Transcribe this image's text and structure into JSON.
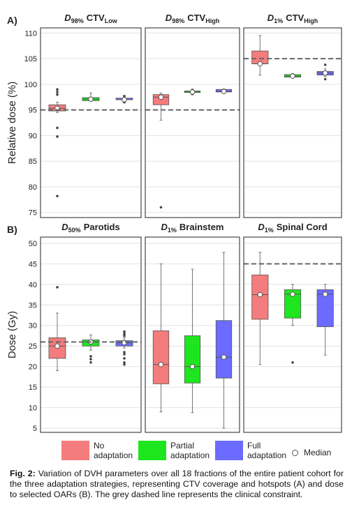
{
  "chart_data": [
    {
      "type": "box",
      "panel_label": "A)",
      "title": {
        "var": "D",
        "var_sub": "98%",
        "name": "CTV",
        "name_sub": "Low"
      },
      "ylabel": "Relative dose (%)",
      "ylim": [
        74,
        111
      ],
      "yticks": [
        75,
        80,
        85,
        90,
        95,
        100,
        105,
        110
      ],
      "grid": true,
      "constraint": 95,
      "series": [
        {
          "name": "No adaptation",
          "color": "#f47c7c",
          "whislo": 94.5,
          "q1": 94.8,
          "med": 95.3,
          "q3": 96.0,
          "whishi": 96.5,
          "fliers": [
            99,
            98.5,
            98,
            91.5,
            89.8,
            78.2
          ]
        },
        {
          "name": "Partial adaptation",
          "color": "#1ee61e",
          "whislo": 96.7,
          "q1": 96.8,
          "med": 97.1,
          "q3": 97.4,
          "whishi": 98.3,
          "fliers": []
        },
        {
          "name": "Full adaptation",
          "color": "#6b6bff",
          "whislo": 96.5,
          "q1": 97.0,
          "med": 97.0,
          "q3": 97.3,
          "whishi": 97.7,
          "fliers": [
            97.7,
            96.5
          ]
        }
      ]
    },
    {
      "type": "box",
      "title": {
        "var": "D",
        "var_sub": "98%",
        "name": "CTV",
        "name_sub": "High"
      },
      "ylim": [
        74,
        111
      ],
      "yticks": [
        75,
        80,
        85,
        90,
        95,
        100,
        105,
        110
      ],
      "grid": true,
      "constraint": 95,
      "series": [
        {
          "name": "No adaptation",
          "color": "#f47c7c",
          "whislo": 93,
          "q1": 96,
          "med": 97.5,
          "q3": 98,
          "whishi": 98.3,
          "fliers": [
            76
          ]
        },
        {
          "name": "Partial adaptation",
          "color": "#1ee61e",
          "whislo": 98.0,
          "q1": 98.4,
          "med": 98.5,
          "q3": 98.7,
          "whishi": 99.0,
          "fliers": [
            98.9,
            98.1
          ]
        },
        {
          "name": "Full adaptation",
          "color": "#6b6bff",
          "whislo": 98.4,
          "q1": 98.5,
          "med": 98.6,
          "q3": 99.0,
          "whishi": 99.1,
          "fliers": []
        }
      ]
    },
    {
      "type": "box",
      "title": {
        "var": "D",
        "var_sub": "1%",
        "name": "CTV",
        "name_sub": "High"
      },
      "ylim": [
        74,
        111
      ],
      "yticks": [
        75,
        80,
        85,
        90,
        95,
        100,
        105,
        110
      ],
      "grid": true,
      "constraint": 105,
      "series": [
        {
          "name": "No adaptation",
          "color": "#f47c7c",
          "whislo": 101.8,
          "q1": 104,
          "med": 104,
          "q3": 106.5,
          "whishi": 109.5,
          "fliers": []
        },
        {
          "name": "Partial adaptation",
          "color": "#1ee61e",
          "whislo": 101.2,
          "q1": 101.4,
          "med": 101.6,
          "q3": 101.9,
          "whishi": 102.1,
          "fliers": []
        },
        {
          "name": "Full adaptation",
          "color": "#6b6bff",
          "whislo": 101.5,
          "q1": 101.8,
          "med": 102.2,
          "q3": 102.5,
          "whishi": 103,
          "fliers": [
            103.8,
            101
          ]
        }
      ]
    },
    {
      "type": "box",
      "panel_label": "B)",
      "title": {
        "var": "D",
        "var_sub": "50%",
        "name": "Parotids"
      },
      "ylabel": "Dose (Gy)",
      "ylim": [
        4,
        51.5
      ],
      "yticks": [
        5,
        10,
        15,
        20,
        25,
        30,
        35,
        40,
        45,
        50
      ],
      "grid": true,
      "constraint": 26,
      "series": [
        {
          "name": "No adaptation",
          "color": "#f47c7c",
          "whislo": 19,
          "q1": 22,
          "med": 25,
          "q3": 27,
          "whishi": 33,
          "fliers": [
            39.3
          ]
        },
        {
          "name": "Partial adaptation",
          "color": "#1ee61e",
          "whislo": 24,
          "q1": 25,
          "med": 26,
          "q3": 26.5,
          "whishi": 27.7,
          "fliers": [
            22.5,
            21.8,
            21
          ]
        },
        {
          "name": "Full adaptation",
          "color": "#6b6bff",
          "whislo": 24.5,
          "q1": 25,
          "med": 25.8,
          "q3": 26.3,
          "whishi": 27,
          "fliers": [
            28.5,
            28,
            27.5,
            23.5,
            23,
            22,
            21,
            20.5
          ]
        }
      ]
    },
    {
      "type": "box",
      "title": {
        "var": "D",
        "var_sub": "1%",
        "name": "Brainstem"
      },
      "ylim": [
        4,
        51.5
      ],
      "yticks": [
        5,
        10,
        15,
        20,
        25,
        30,
        35,
        40,
        45,
        50
      ],
      "grid": true,
      "series": [
        {
          "name": "No adaptation",
          "color": "#f47c7c",
          "whislo": 9,
          "q1": 15.8,
          "med": 20.5,
          "q3": 28.7,
          "whishi": 45,
          "fliers": []
        },
        {
          "name": "Partial adaptation",
          "color": "#1ee61e",
          "whislo": 8.8,
          "q1": 16,
          "med": 20,
          "q3": 27.5,
          "whishi": 43.7,
          "fliers": []
        },
        {
          "name": "Full adaptation",
          "color": "#6b6bff",
          "whislo": 5,
          "q1": 17.2,
          "med": 22.3,
          "q3": 31.2,
          "whishi": 47.8,
          "fliers": []
        }
      ]
    },
    {
      "type": "box",
      "title": {
        "var": "D",
        "var_sub": "1%",
        "name": "Spinal Cord"
      },
      "ylim": [
        4,
        51.5
      ],
      "yticks": [
        5,
        10,
        15,
        20,
        25,
        30,
        35,
        40,
        45,
        50
      ],
      "grid": true,
      "constraint": 45,
      "series": [
        {
          "name": "No adaptation",
          "color": "#f47c7c",
          "whislo": 20.5,
          "q1": 31.5,
          "med": 37.5,
          "q3": 42.3,
          "whishi": 47.8,
          "fliers": []
        },
        {
          "name": "Partial adaptation",
          "color": "#1ee61e",
          "whislo": 30,
          "q1": 31.8,
          "med": 37.6,
          "q3": 38.7,
          "whishi": 40,
          "fliers": [
            21
          ]
        },
        {
          "name": "Full adaptation",
          "color": "#6b6bff",
          "whislo": 22.8,
          "q1": 29.7,
          "med": 37.6,
          "q3": 38.7,
          "whishi": 40,
          "fliers": []
        }
      ]
    }
  ],
  "legend_median": "Median",
  "caption": {
    "label": "Fig. 2:",
    "text": "Variation of DVH parameters over all 18 fractions of the entire patient cohort for the three adaptation strategies, representing CTV coverage and hotspots (A) and dose to selected OARs (B). The grey dashed line represents the clinical constraint."
  }
}
